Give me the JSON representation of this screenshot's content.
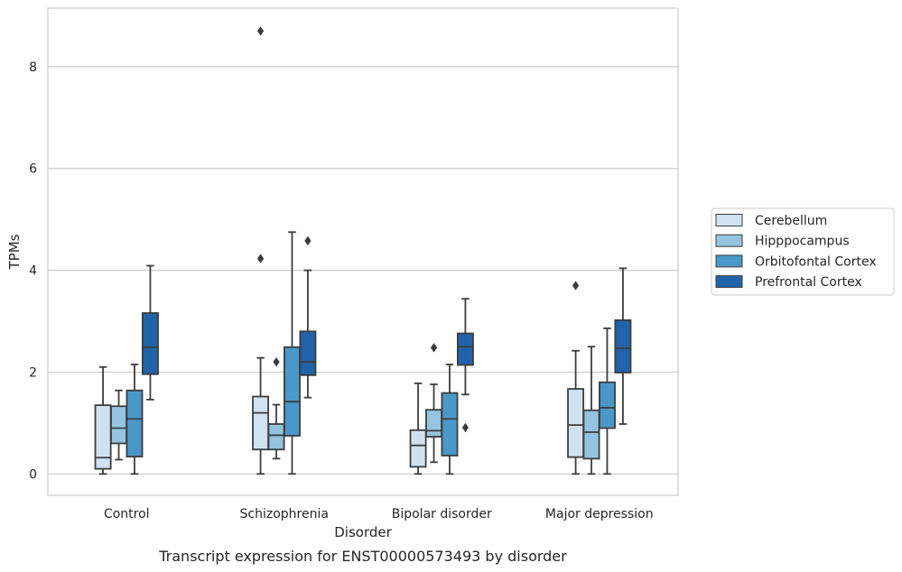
{
  "chart_data": {
    "type": "box",
    "caption": "Transcript expression for ENST00000573493 by disorder",
    "xlabel": "Disorder",
    "ylabel": "TPMs",
    "ylim": [
      -0.42,
      9.15
    ],
    "yticks": [
      0,
      2,
      4,
      6,
      8
    ],
    "grid": "horizontal",
    "legend_placement": "right",
    "categories": [
      "Control",
      "Schizophrenia",
      "Bipolar disorder",
      "Major depression"
    ],
    "series": [
      {
        "name": "Cerebellum",
        "color": "#d0e1f2",
        "boxes": [
          {
            "whislo": 0.0,
            "q1": 0.1,
            "med": 0.32,
            "q3": 1.35,
            "whishi": 2.1,
            "fliers": []
          },
          {
            "whislo": 0.0,
            "q1": 0.48,
            "med": 1.2,
            "q3": 1.52,
            "whishi": 2.28,
            "fliers": [
              4.23,
              8.7
            ]
          },
          {
            "whislo": 0.0,
            "q1": 0.14,
            "med": 0.56,
            "q3": 0.86,
            "whishi": 1.78,
            "fliers": []
          },
          {
            "whislo": 0.0,
            "q1": 0.33,
            "med": 0.96,
            "q3": 1.67,
            "whishi": 2.42,
            "fliers": [
              3.7
            ]
          }
        ]
      },
      {
        "name": "Hipppocampus",
        "color": "#94c4df",
        "boxes": [
          {
            "whislo": 0.28,
            "q1": 0.6,
            "med": 0.9,
            "q3": 1.33,
            "whishi": 1.64,
            "fliers": []
          },
          {
            "whislo": 0.3,
            "q1": 0.48,
            "med": 0.76,
            "q3": 0.98,
            "whishi": 1.36,
            "fliers": [
              2.2
            ]
          },
          {
            "whislo": 0.23,
            "q1": 0.73,
            "med": 0.85,
            "q3": 1.26,
            "whishi": 1.76,
            "fliers": [
              2.48
            ]
          },
          {
            "whislo": 0.0,
            "q1": 0.3,
            "med": 0.82,
            "q3": 1.25,
            "whishi": 2.5,
            "fliers": []
          }
        ]
      },
      {
        "name": "Orbitofontal Cortex",
        "color": "#4a98c9",
        "boxes": [
          {
            "whislo": 0.0,
            "q1": 0.34,
            "med": 1.08,
            "q3": 1.64,
            "whishi": 2.15,
            "fliers": []
          },
          {
            "whislo": 0.0,
            "q1": 0.75,
            "med": 1.42,
            "q3": 2.49,
            "whishi": 4.75,
            "fliers": []
          },
          {
            "whislo": 0.0,
            "q1": 0.36,
            "med": 1.08,
            "q3": 1.59,
            "whishi": 2.15,
            "fliers": []
          },
          {
            "whislo": 0.0,
            "q1": 0.9,
            "med": 1.3,
            "q3": 1.8,
            "whishi": 2.86,
            "fliers": []
          }
        ]
      },
      {
        "name": "Prefrontal Cortex",
        "color": "#2163aa",
        "boxes": [
          {
            "whislo": 1.46,
            "q1": 1.96,
            "med": 2.49,
            "q3": 3.16,
            "whishi": 4.09,
            "fliers": []
          },
          {
            "whislo": 1.5,
            "q1": 1.94,
            "med": 2.2,
            "q3": 2.8,
            "whishi": 4.0,
            "fliers": [
              4.58
            ]
          },
          {
            "whislo": 1.56,
            "q1": 2.14,
            "med": 2.5,
            "q3": 2.76,
            "whishi": 3.44,
            "fliers": [
              0.91
            ]
          },
          {
            "whislo": 0.98,
            "q1": 1.99,
            "med": 2.47,
            "q3": 3.02,
            "whishi": 4.04,
            "fliers": []
          }
        ]
      }
    ]
  }
}
